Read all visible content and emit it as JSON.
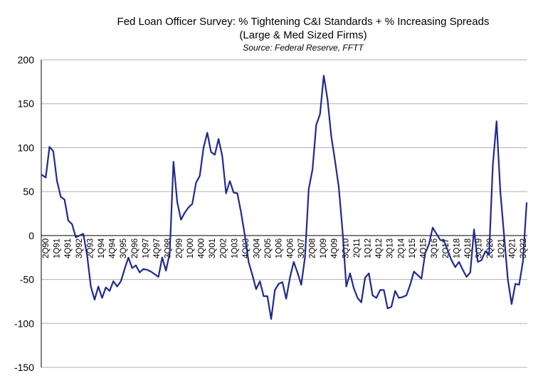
{
  "chart_data": {
    "type": "line",
    "title": "Fed Loan Officer Survey: % Tightening C&I Standards + % Increasing Spreads",
    "subtitle": "(Large & Med Sized Firms)",
    "source": "Source: Federal Reserve, FFTT",
    "ylim": [
      -150,
      200
    ],
    "yticks": [
      200,
      150,
      100,
      50,
      0,
      -50,
      -100,
      -150
    ],
    "grid": "horizontal",
    "line_color": "#1f2a8c",
    "x_tick_labels": [
      "2Q90",
      "1Q91",
      "4Q91",
      "3Q92",
      "2Q93",
      "1Q94",
      "4Q94",
      "3Q95",
      "2Q96",
      "1Q97",
      "4Q97",
      "3Q98",
      "2Q99",
      "1Q00",
      "4Q00",
      "3Q01",
      "2Q02",
      "1Q03",
      "4Q03",
      "3Q04",
      "2Q05",
      "1Q06",
      "4Q06",
      "3Q07",
      "2Q08",
      "1Q09",
      "4Q09",
      "3Q10",
      "2Q11",
      "1Q12",
      "4Q12",
      "3Q13",
      "2Q14",
      "1Q15",
      "4Q15",
      "3Q16",
      "2Q17",
      "1Q18",
      "4Q18",
      "3Q19",
      "2Q20",
      "1Q21",
      "4Q21",
      "3Q22"
    ],
    "series": [
      {
        "values": [
          69,
          66,
          101,
          96,
          62,
          44,
          41,
          17,
          13,
          -2,
          0,
          2,
          -22,
          -58,
          -73,
          -58,
          -71,
          -59,
          -63,
          -52,
          -58,
          -52,
          -38,
          -25,
          -37,
          -34,
          -42,
          -38,
          -39,
          -41,
          -44,
          -47,
          -25,
          -40,
          -20,
          84,
          38,
          18,
          26,
          32,
          36,
          60,
          68,
          100,
          117,
          95,
          92,
          110,
          90,
          48,
          62,
          49,
          48,
          26,
          0,
          -30,
          -45,
          -61,
          -52,
          -69,
          -69,
          -95,
          -62,
          -55,
          -53,
          -72,
          -48,
          -30,
          -42,
          -56,
          -25,
          53,
          75,
          126,
          138,
          182,
          155,
          113,
          85,
          55,
          5,
          -58,
          -43,
          -60,
          -71,
          -76,
          -48,
          -43,
          -68,
          -71,
          -62,
          -62,
          -83,
          -81,
          -63,
          -71,
          -70,
          -68,
          -56,
          -41,
          -45,
          -49,
          -20,
          -10,
          9,
          2,
          -5,
          -6,
          -17,
          -28,
          -36,
          -30,
          -39,
          -47,
          -42,
          7,
          -30,
          -28,
          -18,
          -22,
          80,
          130,
          50,
          0,
          -50,
          -78,
          -55,
          -56,
          -30,
          37
        ]
      }
    ]
  }
}
